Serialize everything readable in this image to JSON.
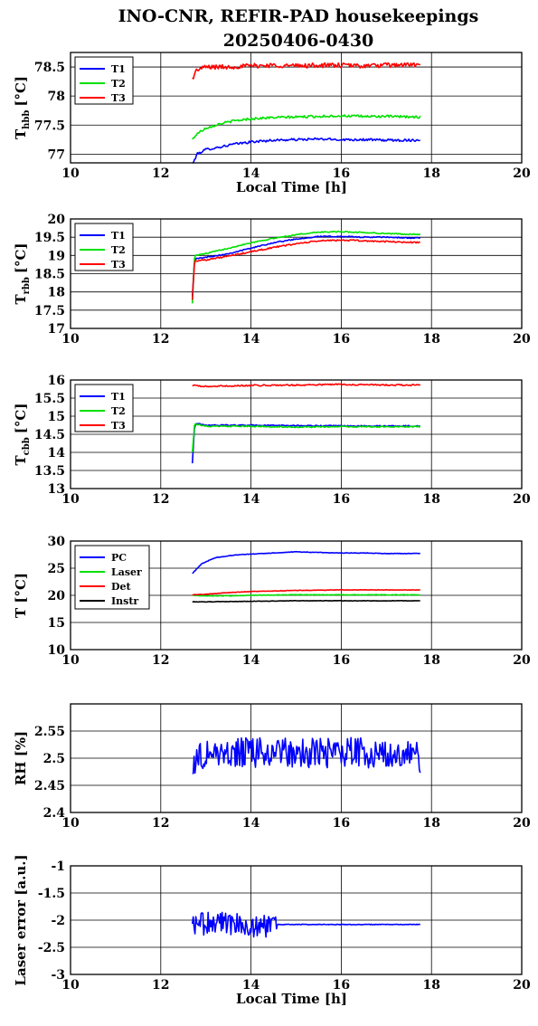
{
  "title_line1": "INO-CNR, REFIR-PAD housekeepings",
  "title_line2": "20250406-0430",
  "colors": {
    "blue": "#0000ff",
    "green": "#00e000",
    "red": "#ff0000",
    "black": "#000000"
  },
  "chart_data": [
    {
      "type": "line",
      "ylabel_main": "T",
      "ylabel_sub": "hbb",
      "ylabel_unit": "[°C]",
      "xlabel": "Local Time [h]",
      "xlim": [
        10,
        20
      ],
      "xticks": [
        10,
        12,
        14,
        16,
        18,
        20
      ],
      "ylim": [
        76.85,
        78.75
      ],
      "yticks": [
        77,
        77.5,
        78,
        78.5
      ],
      "grid": true,
      "legend": "top-left",
      "series": [
        {
          "name": "T1",
          "color": "#0000ff",
          "noise": 0.02,
          "x": [
            12.7,
            12.8,
            13.0,
            13.3,
            13.6,
            14.0,
            14.5,
            15.0,
            15.5,
            16.0,
            16.5,
            17.0,
            17.5,
            17.75
          ],
          "y": [
            76.8,
            77.0,
            77.08,
            77.12,
            77.17,
            77.21,
            77.24,
            77.25,
            77.26,
            77.25,
            77.25,
            77.24,
            77.24,
            77.24
          ]
        },
        {
          "name": "T2",
          "color": "#00e000",
          "noise": 0.02,
          "x": [
            12.7,
            12.8,
            13.0,
            13.3,
            13.6,
            14.0,
            14.5,
            15.0,
            15.5,
            16.0,
            16.5,
            17.0,
            17.5,
            17.75
          ],
          "y": [
            77.25,
            77.35,
            77.45,
            77.52,
            77.57,
            77.61,
            77.63,
            77.64,
            77.65,
            77.66,
            77.65,
            77.65,
            77.64,
            77.64
          ]
        },
        {
          "name": "T3",
          "color": "#ff0000",
          "noise": 0.04,
          "x": [
            12.7,
            12.8,
            13.0,
            13.5,
            14.0,
            14.5,
            15.0,
            15.5,
            16.0,
            16.5,
            17.0,
            17.5,
            17.75
          ],
          "y": [
            78.3,
            78.45,
            78.5,
            78.5,
            78.52,
            78.53,
            78.52,
            78.53,
            78.53,
            78.52,
            78.53,
            78.54,
            78.53
          ]
        }
      ]
    },
    {
      "type": "line",
      "ylabel_main": "T",
      "ylabel_sub": "rbb",
      "ylabel_unit": "[°C]",
      "xlabel": "",
      "xlim": [
        10,
        20
      ],
      "xticks": [
        10,
        12,
        14,
        16,
        18,
        20
      ],
      "ylim": [
        17,
        20
      ],
      "yticks": [
        17,
        17.5,
        18,
        18.5,
        19,
        19.5,
        20
      ],
      "grid": true,
      "legend": "top-left",
      "series": [
        {
          "name": "T1",
          "color": "#0000ff",
          "noise": 0.015,
          "x": [
            12.7,
            12.75,
            13.0,
            13.5,
            14.0,
            14.5,
            15.0,
            15.5,
            16.0,
            16.5,
            17.0,
            17.5,
            17.75
          ],
          "y": [
            17.9,
            18.9,
            18.95,
            19.05,
            19.2,
            19.35,
            19.45,
            19.52,
            19.52,
            19.5,
            19.5,
            19.48,
            19.48
          ]
        },
        {
          "name": "T2",
          "color": "#00e000",
          "noise": 0.015,
          "x": [
            12.7,
            12.75,
            13.0,
            13.5,
            14.0,
            14.5,
            15.0,
            15.5,
            16.0,
            16.5,
            17.0,
            17.5,
            17.75
          ],
          "y": [
            17.7,
            19.0,
            19.05,
            19.2,
            19.35,
            19.47,
            19.57,
            19.64,
            19.65,
            19.63,
            19.6,
            19.58,
            19.58
          ]
        },
        {
          "name": "T3",
          "color": "#ff0000",
          "noise": 0.02,
          "x": [
            12.7,
            12.75,
            13.0,
            13.5,
            14.0,
            14.5,
            15.0,
            15.5,
            16.0,
            16.5,
            17.0,
            17.5,
            17.75
          ],
          "y": [
            17.8,
            18.85,
            18.88,
            18.98,
            19.1,
            19.22,
            19.32,
            19.4,
            19.42,
            19.4,
            19.38,
            19.36,
            19.36
          ]
        }
      ]
    },
    {
      "type": "line",
      "ylabel_main": "T",
      "ylabel_sub": "cbb",
      "ylabel_unit": "[°C]",
      "xlabel": "",
      "xlim": [
        10,
        20
      ],
      "xticks": [
        10,
        12,
        14,
        16,
        18,
        20
      ],
      "ylim": [
        13,
        16
      ],
      "yticks": [
        13,
        13.5,
        14,
        14.5,
        15,
        15.5,
        16
      ],
      "grid": true,
      "legend": "top-left",
      "series": [
        {
          "name": "T1",
          "color": "#0000ff",
          "noise": 0.015,
          "x": [
            12.7,
            12.75,
            12.8,
            13.0,
            14.0,
            15.0,
            16.0,
            17.0,
            17.75
          ],
          "y": [
            13.7,
            14.75,
            14.8,
            14.75,
            14.75,
            14.74,
            14.73,
            14.73,
            14.73
          ]
        },
        {
          "name": "T2",
          "color": "#00e000",
          "noise": 0.015,
          "x": [
            12.7,
            12.75,
            12.8,
            13.0,
            14.0,
            15.0,
            16.0,
            17.0,
            17.75
          ],
          "y": [
            14.0,
            14.8,
            14.78,
            14.72,
            14.72,
            14.7,
            14.71,
            14.71,
            14.71
          ]
        },
        {
          "name": "T3",
          "color": "#ff0000",
          "noise": 0.02,
          "x": [
            12.7,
            13.0,
            14.0,
            15.0,
            16.0,
            17.0,
            17.75
          ],
          "y": [
            15.85,
            15.82,
            15.85,
            15.86,
            15.88,
            15.86,
            15.86
          ]
        }
      ]
    },
    {
      "type": "line",
      "ylabel_main": "T [°C]",
      "ylabel_sub": "",
      "ylabel_unit": "",
      "xlabel": "",
      "xlim": [
        10,
        20
      ],
      "xticks": [
        10,
        12,
        14,
        16,
        18,
        20
      ],
      "ylim": [
        10,
        30
      ],
      "yticks": [
        10,
        15,
        20,
        25,
        30
      ],
      "grid": true,
      "legend": "top-left",
      "series": [
        {
          "name": "PC",
          "color": "#0000ff",
          "noise": 0.05,
          "x": [
            12.7,
            12.9,
            13.2,
            13.6,
            14.0,
            14.5,
            15.0,
            15.5,
            16.0,
            16.5,
            17.0,
            17.75
          ],
          "y": [
            24.0,
            25.8,
            26.9,
            27.4,
            27.6,
            27.8,
            28.0,
            27.9,
            27.8,
            27.8,
            27.7,
            27.7
          ]
        },
        {
          "name": "Laser",
          "color": "#00e000",
          "noise": 0.05,
          "x": [
            12.7,
            13.0,
            13.5,
            14.0,
            15.0,
            16.0,
            17.0,
            17.75
          ],
          "y": [
            20.0,
            19.9,
            19.9,
            20.0,
            20.1,
            20.1,
            20.1,
            20.1
          ]
        },
        {
          "name": "Det",
          "color": "#ff0000",
          "noise": 0.04,
          "x": [
            12.7,
            13.0,
            13.5,
            14.0,
            14.5,
            15.0,
            16.0,
            17.0,
            17.75
          ],
          "y": [
            20.1,
            20.2,
            20.5,
            20.7,
            20.8,
            20.9,
            21.0,
            21.0,
            21.0
          ]
        },
        {
          "name": "Instr",
          "color": "#000000",
          "noise": 0.04,
          "x": [
            12.7,
            13.0,
            14.0,
            15.0,
            16.0,
            17.0,
            17.75
          ],
          "y": [
            18.8,
            18.8,
            18.9,
            19.0,
            19.0,
            19.0,
            19.0
          ]
        }
      ]
    },
    {
      "type": "line",
      "ylabel_main": "RH [%]",
      "ylabel_sub": "",
      "ylabel_unit": "",
      "xlabel": "",
      "xlim": [
        10,
        20
      ],
      "xticks": [
        10,
        12,
        14,
        16,
        18,
        20
      ],
      "ylim": [
        2.4,
        2.6
      ],
      "yticks": [
        2.4,
        2.45,
        2.5,
        2.55
      ],
      "grid": true,
      "legend": "none",
      "series": [
        {
          "name": "",
          "color": "#0000ff",
          "noise": 0.028,
          "spiky": true,
          "x": [
            12.7,
            13.0,
            14.0,
            15.0,
            16.0,
            17.0,
            17.75
          ],
          "y": [
            2.49,
            2.51,
            2.51,
            2.51,
            2.51,
            2.51,
            2.5
          ]
        }
      ]
    },
    {
      "type": "line",
      "ylabel_main": "Laser error [a.u.]",
      "ylabel_sub": "",
      "ylabel_unit": "",
      "xlabel": "Local Time [h]",
      "xlim": [
        10,
        20
      ],
      "xticks": [
        10,
        12,
        14,
        16,
        18,
        20
      ],
      "ylim": [
        -3,
        -1
      ],
      "yticks": [
        -3,
        -2.5,
        -2,
        -1.5,
        -1
      ],
      "grid": true,
      "legend": "none",
      "series": [
        {
          "name": "",
          "color": "#0000ff",
          "noise": 0.22,
          "spiky": true,
          "noise_until": 14.6,
          "noise_after": 0.006,
          "x": [
            12.7,
            13.0,
            13.5,
            14.0,
            14.5,
            14.6,
            15.0,
            16.0,
            17.0,
            17.75
          ],
          "y": [
            -2.1,
            -2.05,
            -2.05,
            -2.1,
            -2.1,
            -2.08,
            -2.08,
            -2.08,
            -2.08,
            -2.08
          ]
        }
      ]
    }
  ]
}
